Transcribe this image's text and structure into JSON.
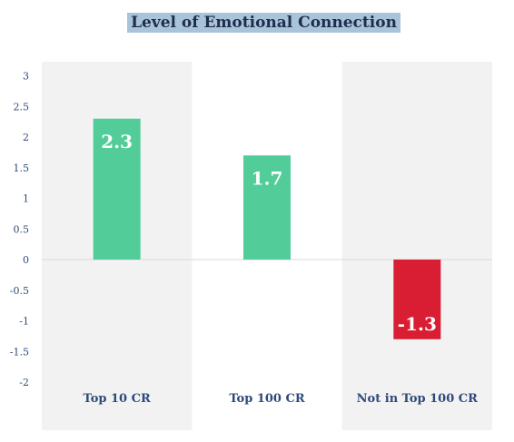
{
  "chart_data": {
    "type": "bar",
    "title": "Level of Emotional Connection",
    "categories": [
      "Top 10 CR",
      "Top 100 CR",
      "Not in Top 100 CR"
    ],
    "values": [
      2.3,
      1.7,
      -1.3
    ],
    "data_labels": [
      "2.3",
      "1.7",
      "-1.3"
    ],
    "yticks": [
      "3",
      "2.5",
      "2",
      "1.5",
      "1",
      "0.5",
      "0",
      "-0.5",
      "-1",
      "-1.5",
      "-2"
    ],
    "ytick_values": [
      3,
      2.5,
      2,
      1.5,
      1,
      0.5,
      0,
      -0.5,
      -1,
      -1.5,
      -2
    ],
    "ylim": [
      -2.2,
      3.3
    ],
    "xlabel": "",
    "ylabel": "",
    "grid": false,
    "legend": "none",
    "colors": {
      "positive": "#52cc98",
      "negative": "#d91e33",
      "band": "#f2f2f2",
      "text": "#2f4a7a",
      "title_bg": "#a9c4d9"
    }
  }
}
